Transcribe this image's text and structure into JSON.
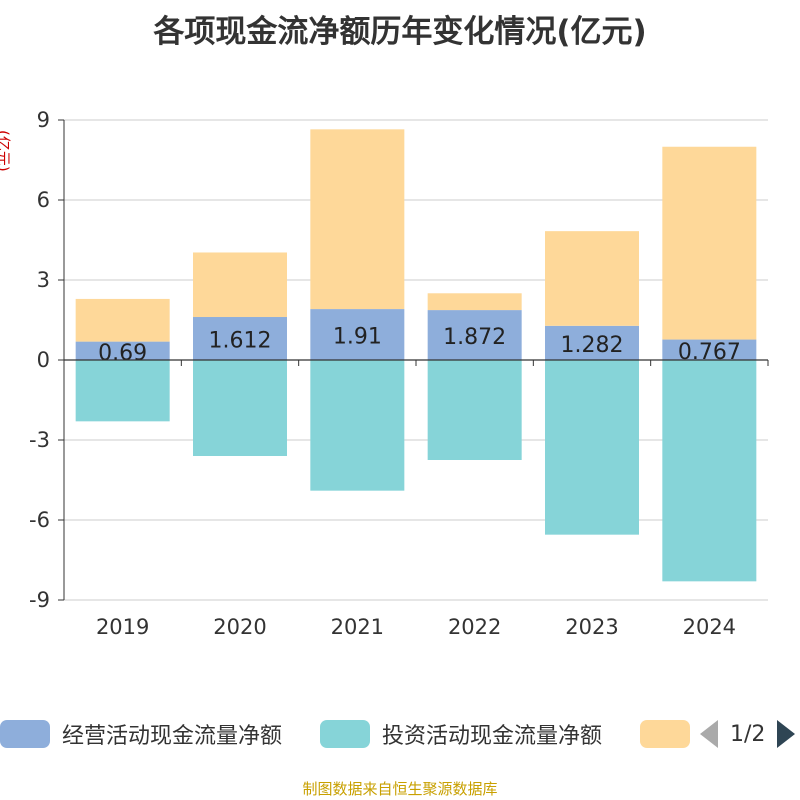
{
  "title": "各项现金流净额历年变化情况(亿元)",
  "footer": "制图数据来自恒生聚源数据库",
  "legend_page": "1/2",
  "chart_data": {
    "type": "bar",
    "stacked": true,
    "title": "各项现金流净额历年变化情况(亿元)",
    "ylabel": "(亿元)",
    "ylim": [
      -9,
      9
    ],
    "yticks": [
      9,
      6,
      3,
      0,
      -3,
      -6,
      -9
    ],
    "categories": [
      "2019",
      "2020",
      "2021",
      "2022",
      "2023",
      "2024"
    ],
    "series": [
      {
        "name": "经营活动现金流量净额",
        "color": "#8eaedb",
        "values": [
          0.69,
          1.612,
          1.91,
          1.872,
          1.282,
          0.767
        ],
        "labels": [
          "0.69",
          "1.612",
          "1.91",
          "1.872",
          "1.282",
          "0.767"
        ]
      },
      {
        "name": "投资活动现金流量净额",
        "color": "#86d4d8",
        "values": [
          -2.3,
          -3.6,
          -4.9,
          -3.75,
          -6.55,
          -8.3
        ]
      },
      {
        "name": "",
        "color": "#fed899",
        "values": [
          1.6,
          2.42,
          6.74,
          0.63,
          3.55,
          7.23
        ]
      }
    ]
  }
}
